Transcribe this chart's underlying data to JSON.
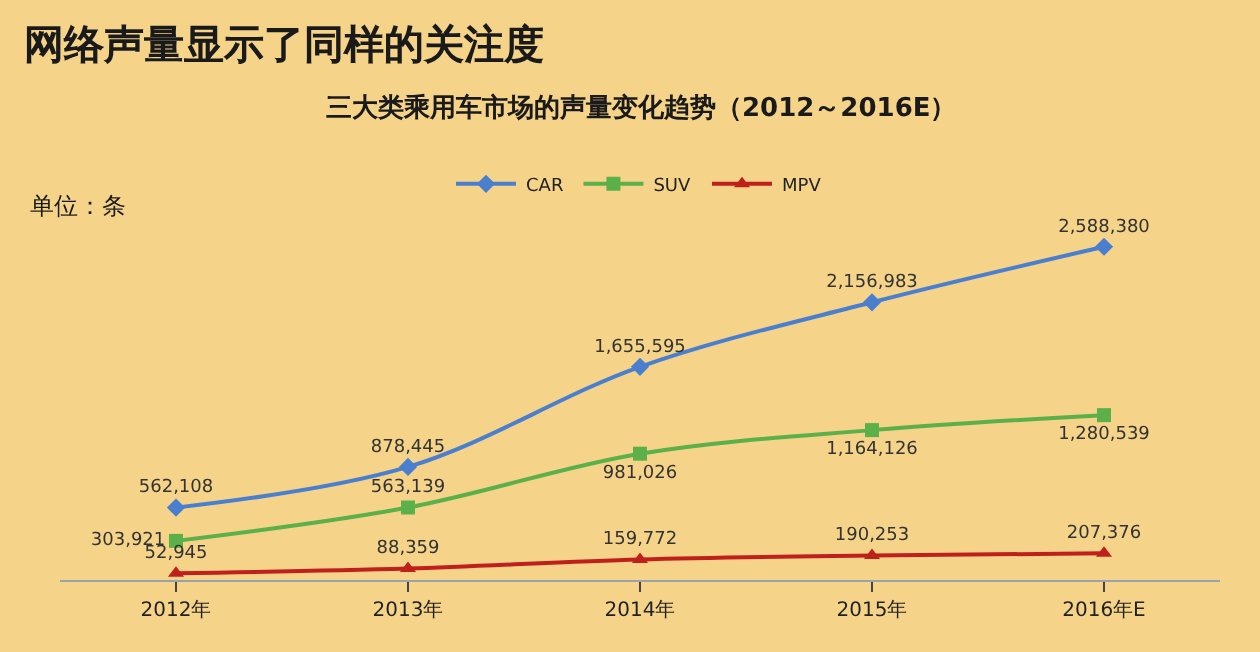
{
  "chart_data": {
    "type": "line",
    "title": "网络声量显示了同样的关注度",
    "subtitle": "三大类乘用车市场的声量变化趋势（2012～2016E）",
    "annotations": [
      "单位：条"
    ],
    "categories": [
      "2012年",
      "2013年",
      "2014年",
      "2015年",
      "2016年E"
    ],
    "series": [
      {
        "name": "CAR",
        "color": "#4a7fd0",
        "marker": "diamond",
        "values": [
          562108,
          878445,
          1655595,
          2156983,
          2588380
        ],
        "value_labels": [
          "562,108",
          "878,445",
          "1,655,595",
          "2,156,983",
          "2,588,380"
        ]
      },
      {
        "name": "SUV",
        "color": "#5cb04a",
        "marker": "square",
        "values": [
          303921,
          563139,
          981026,
          1164126,
          1280539
        ],
        "value_labels": [
          "303,921",
          "563,139",
          "981,026",
          "1,164,126",
          "1,280,539"
        ]
      },
      {
        "name": "MPV",
        "color": "#c0201c",
        "marker": "triangle",
        "values": [
          52945,
          88359,
          159772,
          190253,
          207376
        ],
        "value_labels": [
          "52,945",
          "88,359",
          "159,772",
          "190,253",
          "207,376"
        ]
      }
    ],
    "legend": "top",
    "grid": false
  }
}
